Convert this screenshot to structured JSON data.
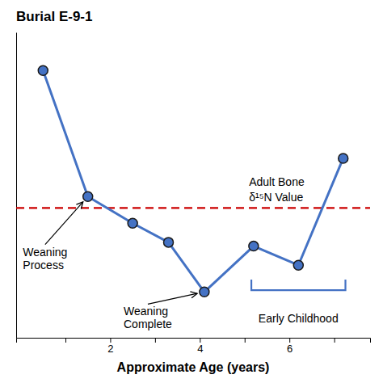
{
  "chart_data": {
    "type": "line",
    "title": "Burial E-9-1",
    "x_label": "Approximate Age (years)",
    "x": [
      0.5,
      1.5,
      2.5,
      3.3,
      4.1,
      5.2,
      6.2,
      7.2
    ],
    "values": [
      9.8,
      6.5,
      5.8,
      5.3,
      4.0,
      5.2,
      4.7,
      7.5
    ],
    "color": "#4472C4",
    "marker": "circle",
    "xlim": [
      -0.1,
      7.8
    ],
    "ylim": [
      2.8,
      10.8
    ],
    "xticks": [
      {
        "value": 1,
        "label": null
      },
      2,
      {
        "value": 3,
        "label": null
      },
      4,
      {
        "value": 5,
        "label": null
      },
      6,
      {
        "value": 7,
        "label": null
      }
    ],
    "yticks": [],
    "tick_labels": "x",
    "grid": false,
    "reference_line": {
      "y": 6.2,
      "color": "#cc0000",
      "line_style": "dashed",
      "label": [
        "Adult Bone",
        "δ¹⁵N Value"
      ]
    },
    "annotations": [
      {
        "text": [
          "Weaning",
          "Process"
        ],
        "x": 1.5,
        "y": 6.5
      },
      {
        "text": [
          "Weaning",
          "Complete"
        ],
        "x": 4.1,
        "y": 4.0
      }
    ],
    "span": {
      "x0": 5.15,
      "x1": 7.25,
      "label": "Early Childhood"
    }
  }
}
